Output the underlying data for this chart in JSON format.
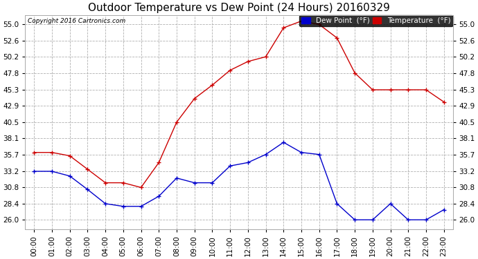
{
  "title": "Outdoor Temperature vs Dew Point (24 Hours) 20160329",
  "copyright": "Copyright 2016 Cartronics.com",
  "hours": [
    "00:00",
    "01:00",
    "02:00",
    "03:00",
    "04:00",
    "05:00",
    "06:00",
    "07:00",
    "08:00",
    "09:00",
    "10:00",
    "11:00",
    "12:00",
    "13:00",
    "14:00",
    "15:00",
    "16:00",
    "17:00",
    "18:00",
    "19:00",
    "20:00",
    "21:00",
    "22:00",
    "23:00"
  ],
  "temperature": [
    36.0,
    36.0,
    35.5,
    33.5,
    31.5,
    31.5,
    30.8,
    34.5,
    40.5,
    44.0,
    46.0,
    48.2,
    49.5,
    50.2,
    54.5,
    55.5,
    55.0,
    53.0,
    47.8,
    45.3,
    45.3,
    45.3,
    45.3,
    43.5
  ],
  "dew_point": [
    33.2,
    33.2,
    32.5,
    30.5,
    28.4,
    28.0,
    28.0,
    29.5,
    32.2,
    31.5,
    31.5,
    34.0,
    34.5,
    35.7,
    37.5,
    36.0,
    35.7,
    28.4,
    26.0,
    26.0,
    28.4,
    26.0,
    26.0,
    27.5
  ],
  "temp_color": "#cc0000",
  "dew_color": "#0000cc",
  "ylim_min": 24.6,
  "ylim_max": 56.4,
  "yticks": [
    26.0,
    28.4,
    30.8,
    33.2,
    35.7,
    38.1,
    40.5,
    42.9,
    45.3,
    47.8,
    50.2,
    52.6,
    55.0
  ],
  "bg_color": "#ffffff",
  "plot_bg": "#ffffff",
  "grid_color": "#b0b0b0",
  "title_fontsize": 11,
  "axis_fontsize": 7.5,
  "legend_dew_bg": "#0000cc",
  "legend_temp_bg": "#cc0000",
  "figwidth": 6.9,
  "figheight": 3.75,
  "dpi": 100
}
